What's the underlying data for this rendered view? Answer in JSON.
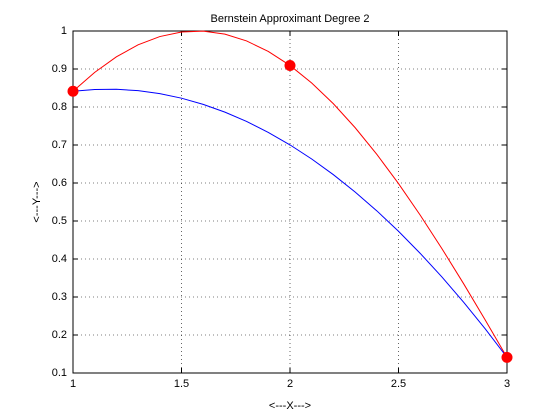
{
  "chart_data": {
    "type": "line",
    "title": "Bernstein Approximant Degree 2",
    "x_label": "<---X--->",
    "y_label": "<---Y--->",
    "xlim": [
      1,
      3
    ],
    "ylim": [
      0.1,
      1
    ],
    "xticks": [
      1,
      1.5,
      2,
      2.5,
      3
    ],
    "yticks": [
      0.1,
      0.2,
      0.3,
      0.4,
      0.5,
      0.6,
      0.7,
      0.8,
      0.9,
      1
    ],
    "grid": true,
    "series": [
      {
        "color": "#ff0000",
        "x": [
          1,
          1.1,
          1.2,
          1.3,
          1.4,
          1.5,
          1.6,
          1.7,
          1.8,
          1.9,
          2,
          2.1,
          2.2,
          2.3,
          2.4,
          2.5,
          2.6,
          2.7,
          2.8,
          2.9,
          3
        ],
        "values": [
          0.8415,
          0.8912,
          0.932,
          0.9636,
          0.9854,
          0.9975,
          0.9996,
          0.9917,
          0.9738,
          0.9463,
          0.9093,
          0.8632,
          0.8085,
          0.7457,
          0.6755,
          0.5985,
          0.5155,
          0.4274,
          0.335,
          0.2392,
          0.1411
        ]
      },
      {
        "color": "#0000ff",
        "x": [
          1,
          1.1,
          1.2,
          1.3,
          1.4,
          1.5,
          1.6,
          1.7,
          1.8,
          1.9,
          2,
          2.1,
          2.2,
          2.3,
          2.4,
          2.5,
          2.6,
          2.7,
          2.8,
          2.9,
          3
        ],
        "values": [
          0.8415,
          0.8462,
          0.8467,
          0.843,
          0.8352,
          0.8232,
          0.8069,
          0.7865,
          0.762,
          0.7332,
          0.7003,
          0.6632,
          0.6219,
          0.5764,
          0.5268,
          0.473,
          0.4149,
          0.3528,
          0.2864,
          0.2158,
          0.1411
        ]
      },
      {
        "color": "#ff0000",
        "marker": "circle",
        "line": false,
        "x": [
          1,
          2,
          3
        ],
        "values": [
          0.8415,
          0.9093,
          0.1411
        ]
      }
    ]
  }
}
